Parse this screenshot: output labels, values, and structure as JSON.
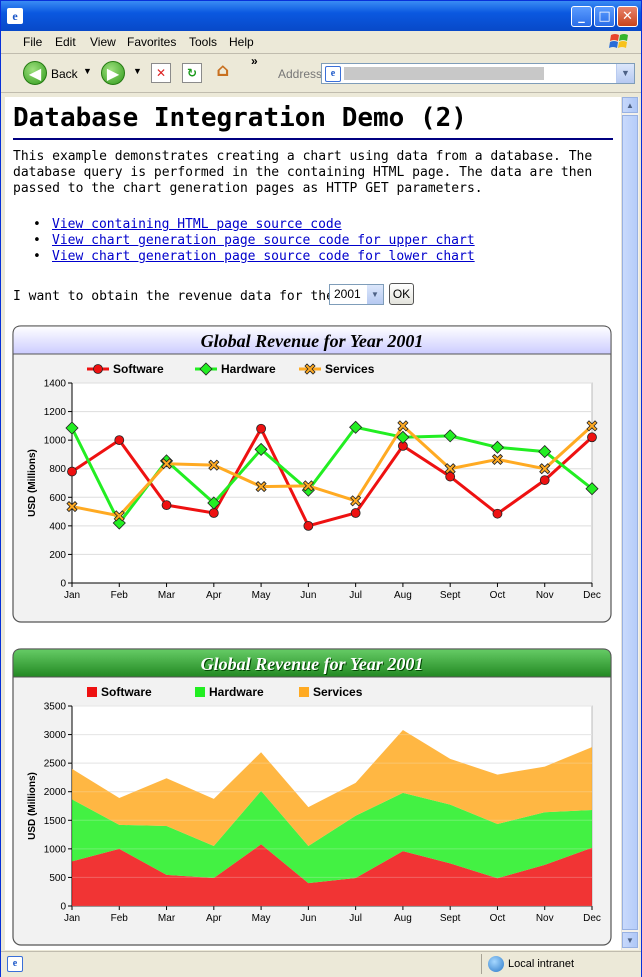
{
  "window": {
    "title": ""
  },
  "menu": [
    "File",
    "Edit",
    "View",
    "Favorites",
    "Tools",
    "Help"
  ],
  "toolbar": {
    "back_label": "Back",
    "address_label": "Address",
    "more": "»"
  },
  "status": {
    "zone": "Local intranet"
  },
  "page": {
    "title": "Database Integration Demo (2)",
    "intro": "This example demonstrates creating a chart using data from a database. The database query is performed in the containing HTML page. The data are then passed to the chart generation pages as HTTP GET parameters.",
    "links": [
      "View containing HTML page source code",
      "View chart generation page source code for upper chart",
      "View chart generation page source code for lower chart"
    ],
    "year_prompt": "I want to obtain the revenue data for the year",
    "year_value": "2001",
    "ok_label": "OK"
  },
  "colors": {
    "software": "#ee1111",
    "hardware": "#22ee22",
    "services": "#ffaa22",
    "title_bar_top": "#ccccff",
    "title_bar_bottom": "#228822"
  },
  "chart_data": [
    {
      "type": "line",
      "title": "Global Revenue for Year 2001",
      "ylabel": "USD (Millions)",
      "xlabel": "",
      "categories": [
        "Jan",
        "Feb",
        "Mar",
        "Apr",
        "May",
        "Jun",
        "Jul",
        "Aug",
        "Sept",
        "Oct",
        "Nov",
        "Dec"
      ],
      "ylim": [
        0,
        1400
      ],
      "yticks": [
        0,
        200,
        400,
        600,
        800,
        1000,
        1200,
        1400
      ],
      "legend": "top",
      "grid": true,
      "series": [
        {
          "name": "Software",
          "color": "#ee1111",
          "marker": "circle",
          "values": [
            780,
            1000,
            545,
            490,
            1080,
            400,
            490,
            960,
            745,
            485,
            720,
            1020
          ]
        },
        {
          "name": "Hardware",
          "color": "#22ee22",
          "marker": "diamond",
          "values": [
            1085,
            420,
            855,
            560,
            935,
            650,
            1090,
            1020,
            1030,
            950,
            920,
            660
          ]
        },
        {
          "name": "Services",
          "color": "#ffaa22",
          "marker": "cross",
          "values": [
            535,
            470,
            835,
            825,
            675,
            680,
            575,
            1100,
            800,
            865,
            800,
            1100
          ]
        }
      ]
    },
    {
      "type": "area",
      "stacked": true,
      "title": "Global Revenue for Year 2001",
      "ylabel": "USD (Millions)",
      "xlabel": "",
      "categories": [
        "Jan",
        "Feb",
        "Mar",
        "Apr",
        "May",
        "Jun",
        "Jul",
        "Aug",
        "Sept",
        "Oct",
        "Nov",
        "Dec"
      ],
      "ylim": [
        0,
        3500
      ],
      "yticks": [
        0,
        500,
        1000,
        1500,
        2000,
        2500,
        3000,
        3500
      ],
      "legend": "top",
      "grid": true,
      "series": [
        {
          "name": "Software",
          "color": "#ee1111",
          "values": [
            780,
            1000,
            545,
            490,
            1080,
            400,
            490,
            960,
            745,
            485,
            720,
            1020
          ]
        },
        {
          "name": "Hardware",
          "color": "#22ee22",
          "values": [
            1085,
            420,
            855,
            560,
            935,
            650,
            1090,
            1020,
            1030,
            950,
            920,
            660
          ]
        },
        {
          "name": "Services",
          "color": "#ffaa22",
          "values": [
            535,
            470,
            835,
            825,
            675,
            680,
            575,
            1100,
            800,
            865,
            800,
            1100
          ]
        }
      ]
    }
  ]
}
